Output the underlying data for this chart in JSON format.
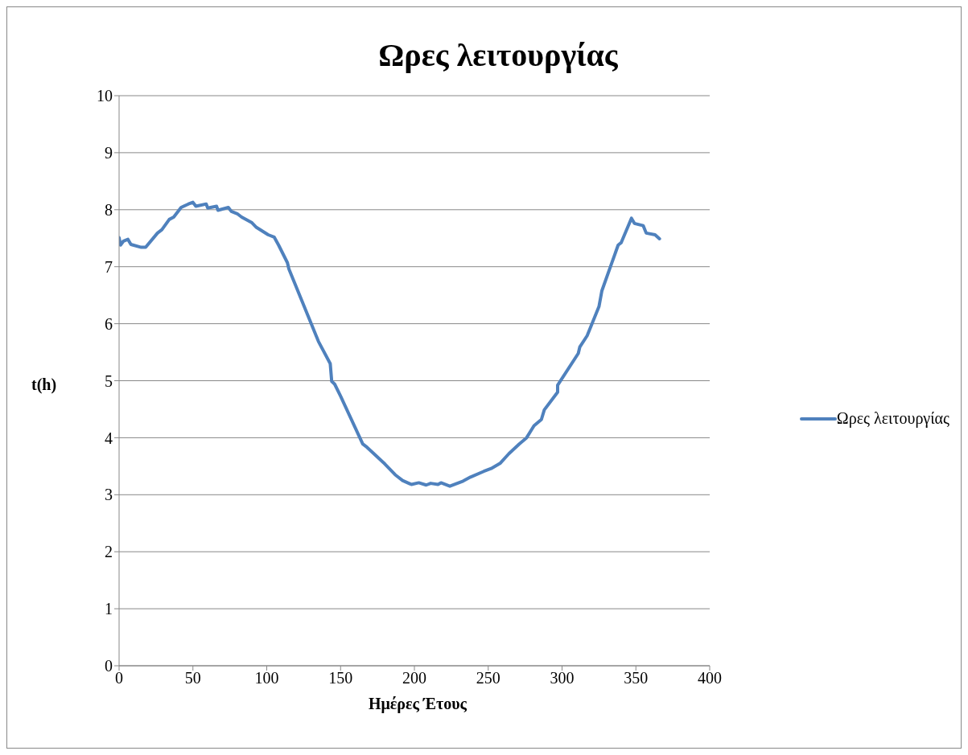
{
  "chart_data": {
    "type": "line",
    "title": "Ωρες λειτουργίας",
    "xlabel": "Ημέρες Έτους",
    "ylabel": "t(h)",
    "xlim": [
      0,
      400
    ],
    "xticks": [
      0,
      50,
      100,
      150,
      200,
      250,
      300,
      350,
      400
    ],
    "ylim": [
      0,
      10
    ],
    "yticks": [
      0,
      1,
      2,
      3,
      4,
      5,
      6,
      7,
      8,
      9,
      10
    ],
    "grid": "y",
    "legend": "right",
    "marker": "none",
    "line_style": "solid",
    "series": [
      {
        "name": "Ωρες λειτουργίας",
        "color": "#4f81bd",
        "x": [
          0,
          1,
          3,
          6,
          8,
          15,
          18,
          26,
          29,
          34,
          37,
          42,
          47,
          50,
          52,
          59,
          60,
          66,
          67,
          74,
          76,
          80,
          83,
          90,
          93,
          101,
          105,
          108,
          114,
          115,
          135,
          143,
          144,
          146,
          150,
          165,
          168,
          180,
          187,
          192,
          198,
          203,
          208,
          211,
          216,
          218,
          224,
          233,
          238,
          247,
          252,
          258,
          264,
          271,
          276,
          281,
          286,
          288,
          297,
          297,
          311,
          312,
          317,
          325,
          327,
          338,
          340,
          347,
          349,
          355,
          357,
          363,
          366
        ],
        "values": [
          7.51,
          7.38,
          7.45,
          7.48,
          7.39,
          7.34,
          7.34,
          7.59,
          7.65,
          7.83,
          7.87,
          8.04,
          8.1,
          8.13,
          8.06,
          8.1,
          8.03,
          8.06,
          7.99,
          8.04,
          7.97,
          7.93,
          7.87,
          7.77,
          7.69,
          7.56,
          7.52,
          7.38,
          7.07,
          6.96,
          5.69,
          5.3,
          4.99,
          4.94,
          4.73,
          3.89,
          3.83,
          3.54,
          3.35,
          3.25,
          3.18,
          3.21,
          3.17,
          3.2,
          3.18,
          3.21,
          3.15,
          3.24,
          3.31,
          3.41,
          3.46,
          3.55,
          3.72,
          3.89,
          4.0,
          4.21,
          4.32,
          4.49,
          4.8,
          4.92,
          5.48,
          5.59,
          5.79,
          6.3,
          6.58,
          7.38,
          7.42,
          7.85,
          7.76,
          7.72,
          7.59,
          7.56,
          7.49
        ]
      }
    ]
  }
}
